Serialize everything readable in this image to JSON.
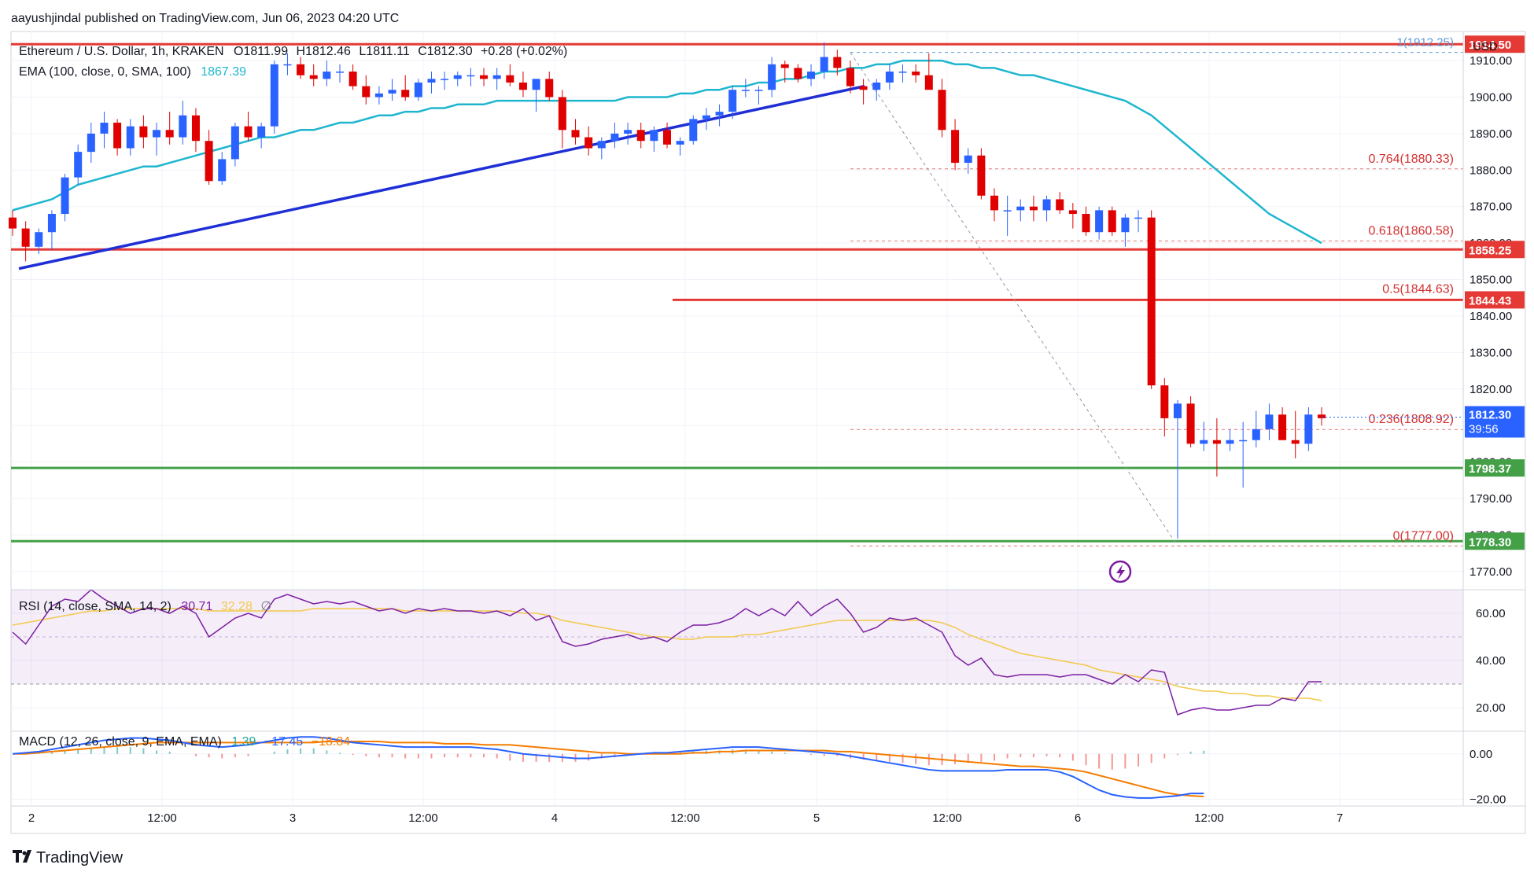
{
  "header": {
    "published": "aayushjindal published on TradingView.com, Jun 06, 2023 04:20 UTC",
    "symbol": "Ethereum / U.S. Dollar, 1h, KRAKEN",
    "ohlc": {
      "open": "O1811.99",
      "high": "H1812.46",
      "low": "L1811.11",
      "close": "C1812.30",
      "change": "+0.28 (+0.02%)"
    },
    "ema_label": "EMA (100, close, 0, SMA, 100)",
    "ema_value": "1867.39",
    "currency": "USD"
  },
  "brand": {
    "name": "TradingView",
    "logo_icon": "tradingview-logo-icon"
  },
  "colors": {
    "up": "#2962ff",
    "down": "#e00000",
    "ema": "#1eb6cf",
    "trend": "#1f2fd6",
    "resistance": "#e53935",
    "support": "#43a047",
    "rsi": "#7b1fa2",
    "rsi_ma": "#f2c94c",
    "macd": "#2962ff",
    "signal": "#f57c00"
  },
  "chart_data": [
    {
      "type": "candlestick",
      "pane": "price",
      "y_range": [
        1765,
        1918
      ],
      "y_ticks": [
        "1910.00",
        "1900.00",
        "1890.00",
        "1880.00",
        "1870.00",
        "1860.00",
        "1850.00",
        "1840.00",
        "1830.00",
        "1820.00",
        "1810.00",
        "1800.00",
        "1790.00",
        "1780.00",
        "1770.00"
      ],
      "x_ticks": [
        "2",
        "12:00",
        "3",
        "12:00",
        "4",
        "12:00",
        "5",
        "12:00",
        "6",
        "12:00",
        "7"
      ],
      "candles": [
        [
          1867,
          1869,
          1862,
          1864
        ],
        [
          1864,
          1866,
          1855,
          1859
        ],
        [
          1859,
          1864,
          1857,
          1863
        ],
        [
          1863,
          1869,
          1858,
          1868
        ],
        [
          1868,
          1879,
          1866,
          1878
        ],
        [
          1878,
          1887,
          1876,
          1885
        ],
        [
          1885,
          1893,
          1882,
          1890
        ],
        [
          1890,
          1896,
          1886,
          1893
        ],
        [
          1893,
          1894,
          1884,
          1886
        ],
        [
          1886,
          1894,
          1884,
          1892
        ],
        [
          1892,
          1895,
          1886,
          1889
        ],
        [
          1889,
          1893,
          1884,
          1891
        ],
        [
          1891,
          1896,
          1887,
          1889
        ],
        [
          1889,
          1899,
          1887,
          1895
        ],
        [
          1895,
          1897,
          1885,
          1888
        ],
        [
          1888,
          1891,
          1876,
          1877
        ],
        [
          1877,
          1885,
          1876,
          1883
        ],
        [
          1883,
          1893,
          1881,
          1892
        ],
        [
          1892,
          1896,
          1888,
          1889
        ],
        [
          1889,
          1893,
          1886,
          1892
        ],
        [
          1892,
          1910,
          1890,
          1909
        ],
        [
          1909,
          1912,
          1906,
          1909
        ],
        [
          1909,
          1911,
          1905,
          1906
        ],
        [
          1906,
          1909,
          1903,
          1905
        ],
        [
          1905,
          1910,
          1903,
          1907
        ],
        [
          1907,
          1909,
          1904,
          1907
        ],
        [
          1907,
          1909,
          1902,
          1903
        ],
        [
          1903,
          1906,
          1898,
          1900
        ],
        [
          1900,
          1903,
          1898,
          1901
        ],
        [
          1901,
          1905,
          1899,
          1902
        ],
        [
          1902,
          1906,
          1899,
          1900
        ],
        [
          1900,
          1905,
          1899,
          1904
        ],
        [
          1904,
          1907,
          1901,
          1905
        ],
        [
          1905,
          1907,
          1902,
          1905
        ],
        [
          1905,
          1907,
          1903,
          1906
        ],
        [
          1906,
          1908,
          1903,
          1906
        ],
        [
          1906,
          1908,
          1903,
          1905
        ],
        [
          1905,
          1908,
          1902,
          1906
        ],
        [
          1906,
          1909,
          1903,
          1904
        ],
        [
          1904,
          1907,
          1900,
          1902
        ],
        [
          1902,
          1905,
          1896,
          1905
        ],
        [
          1905,
          1907,
          1899,
          1900
        ],
        [
          1900,
          1902,
          1886,
          1891
        ],
        [
          1891,
          1894,
          1887,
          1889
        ],
        [
          1889,
          1892,
          1884,
          1886
        ],
        [
          1886,
          1889,
          1883,
          1888
        ],
        [
          1888,
          1893,
          1886,
          1890
        ],
        [
          1890,
          1893,
          1887,
          1891
        ],
        [
          1891,
          1893,
          1886,
          1888
        ],
        [
          1888,
          1892,
          1885,
          1891
        ],
        [
          1891,
          1893,
          1886,
          1887
        ],
        [
          1887,
          1889,
          1884,
          1888
        ],
        [
          1888,
          1895,
          1887,
          1894
        ],
        [
          1894,
          1897,
          1891,
          1895
        ],
        [
          1895,
          1898,
          1892,
          1896
        ],
        [
          1896,
          1903,
          1894,
          1902
        ],
        [
          1902,
          1905,
          1900,
          1902
        ],
        [
          1902,
          1903,
          1898,
          1902
        ],
        [
          1902,
          1911,
          1900,
          1909
        ],
        [
          1909,
          1910,
          1904,
          1908
        ],
        [
          1908,
          1909,
          1904,
          1905
        ],
        [
          1905,
          1909,
          1903,
          1907
        ],
        [
          1907,
          1915,
          1905,
          1911
        ],
        [
          1911,
          1913,
          1906,
          1908
        ],
        [
          1908,
          1910,
          1901,
          1903
        ],
        [
          1903,
          1905,
          1898,
          1902
        ],
        [
          1902,
          1905,
          1899,
          1904
        ],
        [
          1904,
          1909,
          1902,
          1907
        ],
        [
          1907,
          1909,
          1904,
          1907
        ],
        [
          1907,
          1909,
          1904,
          1906
        ],
        [
          1906,
          1912,
          1903,
          1902
        ],
        [
          1902,
          1905,
          1889,
          1891
        ],
        [
          1891,
          1894,
          1880,
          1882
        ],
        [
          1882,
          1886,
          1879,
          1884
        ],
        [
          1884,
          1886,
          1872,
          1873
        ],
        [
          1873,
          1875,
          1866,
          1869
        ],
        [
          1869,
          1873,
          1862,
          1869
        ],
        [
          1869,
          1872,
          1866,
          1870
        ],
        [
          1870,
          1873,
          1866,
          1869
        ],
        [
          1869,
          1873,
          1866,
          1872
        ],
        [
          1872,
          1874,
          1868,
          1869
        ],
        [
          1869,
          1871,
          1864,
          1868
        ],
        [
          1868,
          1870,
          1862,
          1863
        ],
        [
          1863,
          1870,
          1861,
          1869
        ],
        [
          1869,
          1870,
          1862,
          1863
        ],
        [
          1863,
          1868,
          1859,
          1867
        ],
        [
          1867,
          1869,
          1863,
          1867
        ],
        [
          1867,
          1869,
          1820,
          1821
        ],
        [
          1821,
          1823,
          1807,
          1812
        ],
        [
          1812,
          1817,
          1779,
          1816
        ],
        [
          1816,
          1818,
          1804,
          1805
        ],
        [
          1805,
          1811,
          1803,
          1806
        ],
        [
          1806,
          1812,
          1796,
          1805
        ],
        [
          1805,
          1809,
          1803,
          1806
        ],
        [
          1806,
          1811,
          1793,
          1806
        ],
        [
          1806,
          1814,
          1804,
          1809
        ],
        [
          1809,
          1816,
          1806,
          1813
        ],
        [
          1813,
          1815,
          1806,
          1806
        ],
        [
          1806,
          1814,
          1801,
          1805
        ],
        [
          1805,
          1815,
          1803,
          1813
        ],
        [
          1813,
          1815,
          1810,
          1812
        ]
      ],
      "ema_100": [
        1869,
        1870,
        1871,
        1872,
        1874,
        1876,
        1877,
        1878,
        1879,
        1880,
        1881,
        1881,
        1882,
        1883,
        1884,
        1885,
        1886,
        1887,
        1888,
        1889,
        1889,
        1890,
        1891,
        1891,
        1892,
        1893,
        1893,
        1894,
        1895,
        1895,
        1896,
        1896,
        1897,
        1897,
        1898,
        1898,
        1898,
        1899,
        1899,
        1899,
        1899,
        1899,
        1899,
        1899,
        1899,
        1899,
        1899,
        1900,
        1900,
        1900,
        1900,
        1901,
        1901,
        1902,
        1902,
        1903,
        1903,
        1904,
        1904,
        1905,
        1905,
        1906,
        1907,
        1907,
        1908,
        1908,
        1909,
        1909,
        1910,
        1910,
        1910,
        1910,
        1909,
        1909,
        1908,
        1908,
        1907,
        1906,
        1906,
        1905,
        1904,
        1903,
        1902,
        1901,
        1900,
        1899,
        1897,
        1895,
        1892,
        1889,
        1886,
        1883,
        1880,
        1877,
        1874,
        1871,
        1868,
        1866,
        1864,
        1862,
        1860,
        1858,
        1856,
        1867
      ],
      "trendline": {
        "from": [
          0,
          1853
        ],
        "to": [
          64,
          1903
        ]
      },
      "levels": [
        {
          "name": "resistance-1914",
          "value": 1914.5,
          "label": "1914.50",
          "color": "#e53935"
        },
        {
          "name": "resistance-1858",
          "value": 1858.25,
          "label": "1858.25",
          "color": "#e53935"
        },
        {
          "name": "resistance-1844",
          "value": 1844.43,
          "label": "1844.43",
          "color": "#e53935"
        },
        {
          "name": "support-1798",
          "value": 1798.37,
          "label": "1798.37",
          "color": "#43a047"
        },
        {
          "name": "support-1778",
          "value": 1778.3,
          "label": "1778.30",
          "color": "#43a047"
        }
      ],
      "fib": [
        {
          "level": "1",
          "value": 1912.25,
          "label": "1(1912.25)"
        },
        {
          "level": "0.764",
          "value": 1880.33,
          "label": "0.764(1880.33)"
        },
        {
          "level": "0.618",
          "value": 1860.58,
          "label": "0.618(1860.58)"
        },
        {
          "level": "0.5",
          "value": 1844.63,
          "label": "0.5(1844.63)"
        },
        {
          "level": "0.236",
          "value": 1808.92,
          "label": "0.236(1808.92)"
        },
        {
          "level": "0",
          "value": 1777.0,
          "label": "0(1777.00)"
        }
      ],
      "last_price": {
        "value": 1812.3,
        "label": "1812.30",
        "countdown": "39:56"
      }
    },
    {
      "type": "line",
      "pane": "rsi",
      "label": "RSI (14, close, SMA, 14, 2)",
      "value_label": "30.71",
      "ma_label": "32.28",
      "extra_label": "∅",
      "y_range": [
        10,
        70
      ],
      "y_ticks": [
        "60.00",
        "40.00",
        "20.00"
      ],
      "band": [
        30,
        70
      ],
      "rsi": [
        52,
        47,
        55,
        63,
        66,
        65,
        70,
        66,
        63,
        60,
        62,
        62,
        60,
        63,
        60,
        50,
        54,
        58,
        60,
        58,
        66,
        68,
        66,
        64,
        65,
        64,
        65,
        63,
        61,
        62,
        60,
        62,
        61,
        62,
        61,
        61,
        60,
        61,
        59,
        62,
        57,
        59,
        48,
        46,
        47,
        49,
        50,
        51,
        49,
        50,
        48,
        52,
        55,
        55,
        56,
        58,
        62,
        59,
        62,
        59,
        65,
        59,
        63,
        66,
        60,
        52,
        54,
        58,
        57,
        58,
        55,
        52,
        42,
        38,
        41,
        34,
        33,
        34,
        34,
        34,
        33,
        34,
        34,
        32,
        30,
        34,
        31,
        36,
        35,
        17,
        19,
        20,
        19,
        19,
        20,
        21,
        21,
        24,
        23,
        31,
        31
      ],
      "rsi_ma": [
        55,
        56,
        57,
        58,
        59,
        60,
        61,
        61,
        62,
        62,
        62,
        62,
        62,
        62,
        62,
        61,
        61,
        61,
        61,
        61,
        61,
        61,
        61,
        62,
        62,
        62,
        62,
        62,
        62,
        62,
        61,
        61,
        61,
        61,
        61,
        61,
        61,
        61,
        61,
        60,
        60,
        59,
        57,
        56,
        55,
        54,
        53,
        52,
        51,
        50,
        50,
        49,
        49,
        50,
        50,
        50,
        51,
        51,
        52,
        53,
        54,
        55,
        56,
        57,
        57,
        57,
        57,
        57,
        57,
        57,
        57,
        56,
        54,
        51,
        49,
        47,
        45,
        43,
        42,
        41,
        40,
        39,
        38,
        36,
        35,
        34,
        33,
        32,
        31,
        29,
        28,
        27,
        27,
        26,
        26,
        25,
        25,
        24,
        24,
        24,
        23
      ]
    },
    {
      "type": "line",
      "pane": "macd",
      "label": "MACD (12, 26, close, 9, EMA, EMA)",
      "values_label": [
        "1.39",
        "−17.45",
        "−18.84"
      ],
      "y_range": [
        -23,
        10
      ],
      "y_ticks": [
        "0.00",
        "−20.00"
      ],
      "macd": [
        0,
        0.5,
        1,
        2,
        3,
        4,
        5,
        6,
        6.5,
        7,
        7,
        6.5,
        6,
        5,
        4,
        3.5,
        3,
        3.5,
        4,
        5,
        6,
        7,
        7.5,
        7.5,
        7,
        6,
        5,
        4.5,
        4,
        3.5,
        3,
        3,
        3,
        3,
        3,
        3,
        2.5,
        2,
        1,
        0,
        -0.5,
        -1,
        -1.5,
        -2,
        -2,
        -1.5,
        -1,
        -0.5,
        0,
        0.5,
        0.5,
        1,
        1.5,
        2,
        2.5,
        3,
        3,
        3,
        2.5,
        2,
        1.5,
        1,
        0.5,
        0,
        -1,
        -2,
        -3,
        -4,
        -5,
        -6,
        -7,
        -7.5,
        -7.5,
        -7.5,
        -7.5,
        -7.5,
        -7,
        -7,
        -7,
        -7,
        -8,
        -10,
        -13,
        -16,
        -18,
        -19,
        -19.5,
        -19.5,
        -19,
        -18.5,
        -17.5,
        -17.45
      ],
      "signal": [
        0,
        0,
        0.5,
        1,
        1.5,
        2,
        2.5,
        3,
        3.5,
        4,
        4.5,
        5,
        5,
        5,
        5,
        5,
        5,
        5,
        5,
        5,
        5,
        5,
        5,
        5,
        5.5,
        5.5,
        5.5,
        5.5,
        5.5,
        5,
        5,
        5,
        5,
        4.5,
        4.5,
        4.5,
        4,
        4,
        4,
        3.5,
        3,
        2.5,
        2,
        1.5,
        1,
        0.5,
        0.5,
        0,
        0,
        0,
        0,
        0,
        0.5,
        0.5,
        1,
        1,
        1.5,
        1.5,
        1.5,
        1.5,
        1.5,
        1.5,
        1.5,
        1,
        1,
        0.5,
        0,
        -0.5,
        -1,
        -1.5,
        -2,
        -2.5,
        -3,
        -3.5,
        -4,
        -4.5,
        -5,
        -5.5,
        -5.5,
        -6,
        -6.5,
        -7,
        -8,
        -9.5,
        -11,
        -12.5,
        -14,
        -15.5,
        -17,
        -18,
        -18.5,
        -18.84
      ]
    }
  ]
}
